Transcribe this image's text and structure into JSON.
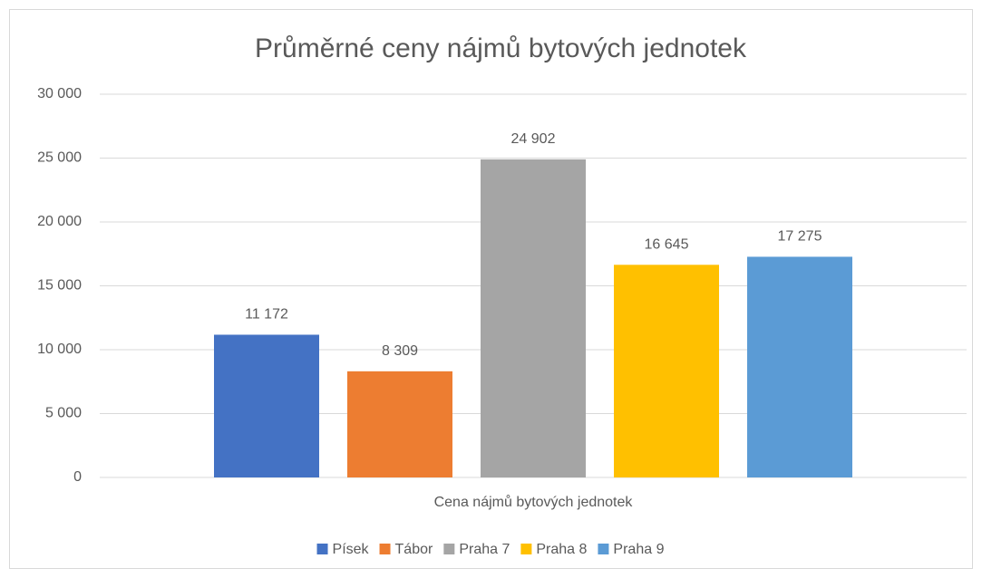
{
  "chart_data": {
    "type": "bar",
    "title": "Průměrné ceny nájmů bytových jednotek",
    "categories": [
      "Cena nájmů bytových jednotek"
    ],
    "series": [
      {
        "name": "Písek",
        "color": "#4472c4",
        "values": [
          11172
        ],
        "value_labels": [
          "11 172"
        ]
      },
      {
        "name": "Tábor",
        "color": "#ed7d31",
        "values": [
          8309
        ],
        "value_labels": [
          "8 309"
        ]
      },
      {
        "name": "Praha 7",
        "color": "#a5a5a5",
        "values": [
          24902
        ],
        "value_labels": [
          "24 902"
        ]
      },
      {
        "name": "Praha 8",
        "color": "#ffc000",
        "values": [
          16645
        ],
        "value_labels": [
          "16 645"
        ]
      },
      {
        "name": "Praha 9",
        "color": "#5b9bd5",
        "values": [
          17275
        ],
        "value_labels": [
          "17 275"
        ]
      }
    ],
    "ylim": [
      0,
      30000
    ],
    "yticks": [
      0,
      {
        "value": 5000,
        "label": "5 000"
      },
      {
        "value": 10000,
        "label": "10 000"
      },
      {
        "value": 15000,
        "label": "15 000"
      },
      {
        "value": 20000,
        "label": "20 000"
      },
      {
        "value": 25000,
        "label": "25 000"
      },
      {
        "value": 30000,
        "label": "30 000"
      }
    ],
    "grid": true,
    "legend": "bottom"
  }
}
